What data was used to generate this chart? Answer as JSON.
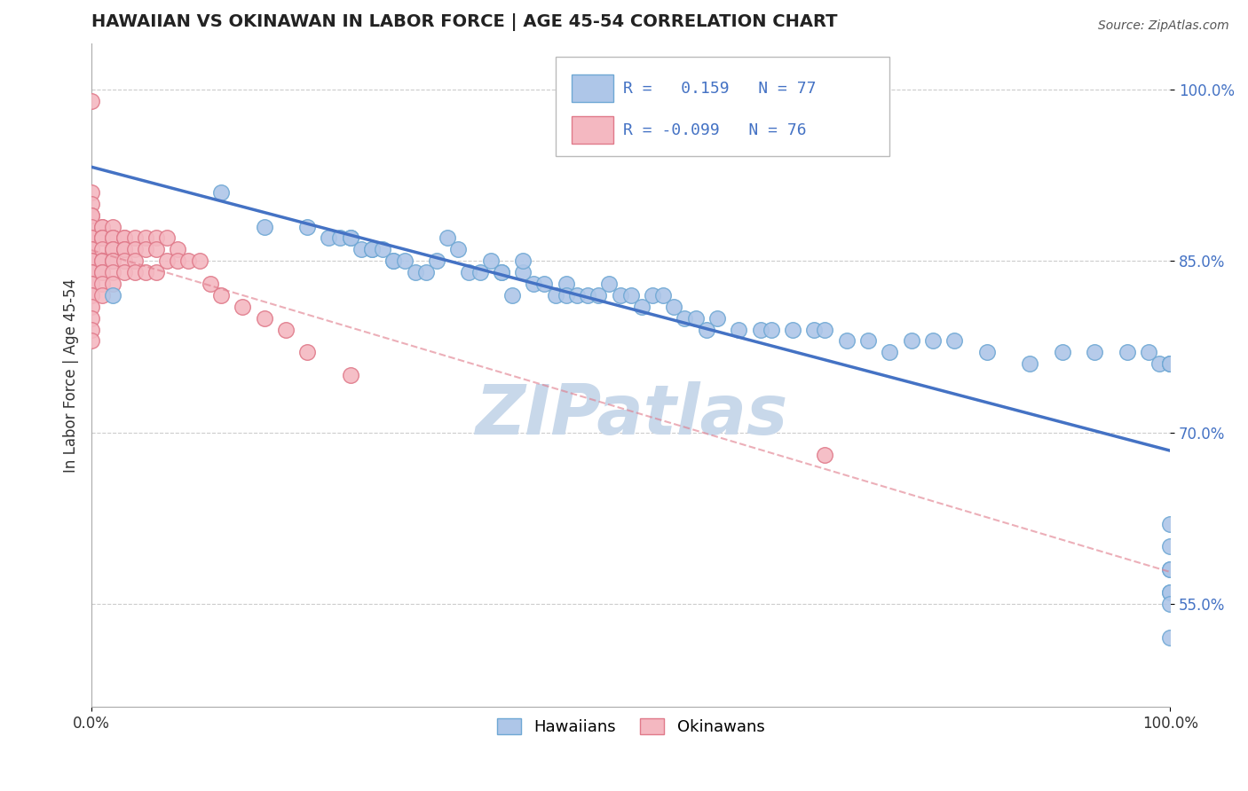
{
  "title": "HAWAIIAN VS OKINAWAN IN LABOR FORCE | AGE 45-54 CORRELATION CHART",
  "source_text": "Source: ZipAtlas.com",
  "ylabel": "In Labor Force | Age 45-54",
  "xlim": [
    0.0,
    1.0
  ],
  "ylim_low": 0.46,
  "ylim_high": 1.04,
  "yticks": [
    0.55,
    0.7,
    0.85,
    1.0
  ],
  "ytick_labels": [
    "55.0%",
    "70.0%",
    "85.0%",
    "100.0%"
  ],
  "xtick_labels": [
    "0.0%",
    "100.0%"
  ],
  "hawaiian_R": 0.159,
  "hawaiian_N": 77,
  "okinawan_R": -0.099,
  "okinawan_N": 76,
  "hawaiian_color": "#aec6e8",
  "okinawan_color": "#f4b8c1",
  "hawaiian_edge": "#6fa8d4",
  "okinawan_edge": "#e07a8a",
  "trend_blue": "#4472c4",
  "trend_pink": "#e07a8a",
  "watermark_color": "#c8d8ea",
  "background_color": "#ffffff",
  "hawaiian_x": [
    0.02,
    0.12,
    0.16,
    0.2,
    0.22,
    0.23,
    0.24,
    0.24,
    0.25,
    0.26,
    0.26,
    0.27,
    0.28,
    0.28,
    0.29,
    0.3,
    0.31,
    0.32,
    0.33,
    0.34,
    0.35,
    0.36,
    0.37,
    0.38,
    0.38,
    0.39,
    0.4,
    0.4,
    0.41,
    0.42,
    0.43,
    0.44,
    0.44,
    0.45,
    0.46,
    0.47,
    0.48,
    0.49,
    0.5,
    0.51,
    0.52,
    0.53,
    0.54,
    0.55,
    0.56,
    0.57,
    0.58,
    0.6,
    0.62,
    0.63,
    0.65,
    0.67,
    0.68,
    0.7,
    0.72,
    0.74,
    0.76,
    0.78,
    0.8,
    0.83,
    0.87,
    0.9,
    0.93,
    0.96,
    0.98,
    0.99,
    1.0,
    1.0,
    1.0,
    1.0,
    1.0,
    1.0,
    1.0,
    1.0,
    1.0,
    1.0,
    1.0
  ],
  "hawaiian_y": [
    0.82,
    0.91,
    0.88,
    0.88,
    0.87,
    0.87,
    0.87,
    0.87,
    0.86,
    0.86,
    0.86,
    0.86,
    0.85,
    0.85,
    0.85,
    0.84,
    0.84,
    0.85,
    0.87,
    0.86,
    0.84,
    0.84,
    0.85,
    0.84,
    0.84,
    0.82,
    0.84,
    0.85,
    0.83,
    0.83,
    0.82,
    0.83,
    0.82,
    0.82,
    0.82,
    0.82,
    0.83,
    0.82,
    0.82,
    0.81,
    0.82,
    0.82,
    0.81,
    0.8,
    0.8,
    0.79,
    0.8,
    0.79,
    0.79,
    0.79,
    0.79,
    0.79,
    0.79,
    0.78,
    0.78,
    0.77,
    0.78,
    0.78,
    0.78,
    0.77,
    0.76,
    0.77,
    0.77,
    0.77,
    0.77,
    0.76,
    0.76,
    0.76,
    0.76,
    0.62,
    0.6,
    0.58,
    0.58,
    0.56,
    0.56,
    0.55,
    0.52
  ],
  "okinawan_x": [
    0.0,
    0.0,
    0.0,
    0.0,
    0.0,
    0.0,
    0.0,
    0.0,
    0.0,
    0.0,
    0.0,
    0.0,
    0.0,
    0.0,
    0.0,
    0.0,
    0.0,
    0.0,
    0.0,
    0.0,
    0.0,
    0.0,
    0.0,
    0.0,
    0.0,
    0.01,
    0.01,
    0.01,
    0.01,
    0.01,
    0.01,
    0.01,
    0.01,
    0.01,
    0.01,
    0.01,
    0.01,
    0.02,
    0.02,
    0.02,
    0.02,
    0.02,
    0.02,
    0.02,
    0.02,
    0.02,
    0.03,
    0.03,
    0.03,
    0.03,
    0.03,
    0.03,
    0.04,
    0.04,
    0.04,
    0.04,
    0.05,
    0.05,
    0.05,
    0.06,
    0.06,
    0.06,
    0.07,
    0.07,
    0.08,
    0.08,
    0.09,
    0.1,
    0.11,
    0.12,
    0.14,
    0.16,
    0.18,
    0.2,
    0.24,
    0.68
  ],
  "okinawan_y": [
    0.99,
    0.91,
    0.9,
    0.89,
    0.89,
    0.88,
    0.87,
    0.87,
    0.86,
    0.86,
    0.86,
    0.85,
    0.85,
    0.85,
    0.84,
    0.84,
    0.84,
    0.83,
    0.83,
    0.82,
    0.82,
    0.81,
    0.8,
    0.79,
    0.78,
    0.88,
    0.88,
    0.87,
    0.87,
    0.87,
    0.86,
    0.85,
    0.85,
    0.84,
    0.84,
    0.83,
    0.82,
    0.88,
    0.87,
    0.87,
    0.86,
    0.86,
    0.85,
    0.85,
    0.84,
    0.83,
    0.87,
    0.87,
    0.86,
    0.86,
    0.85,
    0.84,
    0.87,
    0.86,
    0.85,
    0.84,
    0.87,
    0.86,
    0.84,
    0.87,
    0.86,
    0.84,
    0.87,
    0.85,
    0.86,
    0.85,
    0.85,
    0.85,
    0.83,
    0.82,
    0.81,
    0.8,
    0.79,
    0.77,
    0.75,
    0.68
  ]
}
